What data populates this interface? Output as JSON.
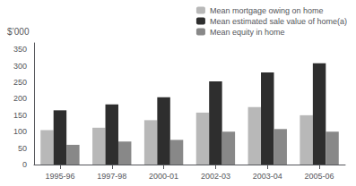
{
  "chart_data": {
    "type": "bar",
    "ylabel": "$’000",
    "categories": [
      "1995-96",
      "1997-98",
      "2000-01",
      "2002-03",
      "2003-04",
      "2005-06"
    ],
    "series": [
      {
        "name": "Mean mortgage owing on home",
        "color": "#b8b8b8",
        "values": [
          105,
          112,
          135,
          158,
          175,
          150
        ]
      },
      {
        "name": "Mean estimated sale value of home(a)",
        "color": "#2e2e2e",
        "values": [
          165,
          183,
          205,
          253,
          280,
          308
        ]
      },
      {
        "name": "Mean equity in home",
        "color": "#888888",
        "values": [
          60,
          70,
          75,
          100,
          108,
          100
        ]
      }
    ],
    "ylim": [
      0,
      370
    ],
    "yticks": [
      0,
      50,
      100,
      150,
      200,
      250,
      300,
      350
    ],
    "grid": false,
    "legend": "upper right"
  }
}
